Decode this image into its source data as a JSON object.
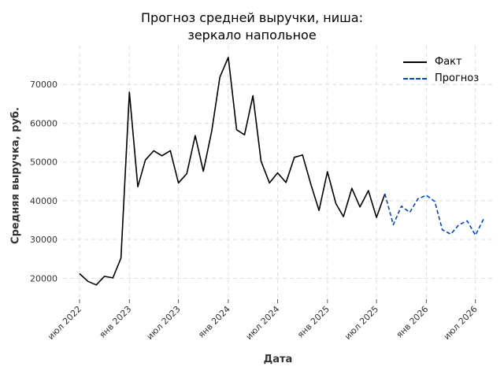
{
  "chart_data": {
    "type": "line",
    "title_lines": [
      "Прогноз средней выручки, ниша:",
      "зеркало напольное"
    ],
    "xlabel": "Дата",
    "ylabel": "Средняя выручка, руб.",
    "xlim": [
      "2022-05-01",
      "2026-09-01"
    ],
    "ylim": [
      15000,
      80000
    ],
    "x_ticks": [
      {
        "date": "2022-07-01",
        "label": "июл 2022"
      },
      {
        "date": "2023-01-01",
        "label": "янв 2023"
      },
      {
        "date": "2023-07-01",
        "label": "июл 2023"
      },
      {
        "date": "2024-01-01",
        "label": "янв 2024"
      },
      {
        "date": "2024-07-01",
        "label": "июл 2024"
      },
      {
        "date": "2025-01-01",
        "label": "янв 2025"
      },
      {
        "date": "2025-07-01",
        "label": "июл 2025"
      },
      {
        "date": "2026-01-01",
        "label": "янв 2026"
      },
      {
        "date": "2026-07-01",
        "label": "июл 2026"
      }
    ],
    "y_ticks": [
      20000,
      30000,
      40000,
      50000,
      60000,
      70000
    ],
    "grid": true,
    "legend_position": "top-right",
    "series": [
      {
        "name": "Факт",
        "color": "#000000",
        "style": "solid",
        "points": [
          [
            "2022-07-01",
            21200
          ],
          [
            "2022-08-01",
            19200
          ],
          [
            "2022-09-01",
            18300
          ],
          [
            "2022-10-01",
            20500
          ],
          [
            "2022-11-01",
            20100
          ],
          [
            "2022-12-01",
            25200
          ],
          [
            "2023-01-01",
            68000
          ],
          [
            "2023-02-01",
            43600
          ],
          [
            "2023-03-01",
            50500
          ],
          [
            "2023-04-01",
            52900
          ],
          [
            "2023-05-01",
            51600
          ],
          [
            "2023-06-01",
            52900
          ],
          [
            "2023-07-01",
            44600
          ],
          [
            "2023-08-01",
            47000
          ],
          [
            "2023-09-01",
            56800
          ],
          [
            "2023-10-01",
            47600
          ],
          [
            "2023-11-01",
            58000
          ],
          [
            "2023-12-01",
            71900
          ],
          [
            "2024-01-01",
            77000
          ],
          [
            "2024-02-01",
            58300
          ],
          [
            "2024-03-01",
            57000
          ],
          [
            "2024-04-01",
            67100
          ],
          [
            "2024-05-01",
            50200
          ],
          [
            "2024-06-01",
            44600
          ],
          [
            "2024-07-01",
            47200
          ],
          [
            "2024-08-01",
            44700
          ],
          [
            "2024-09-01",
            51200
          ],
          [
            "2024-10-01",
            51800
          ],
          [
            "2024-11-01",
            44200
          ],
          [
            "2024-12-01",
            37500
          ],
          [
            "2025-01-01",
            47500
          ],
          [
            "2025-02-01",
            39300
          ],
          [
            "2025-03-01",
            35900
          ],
          [
            "2025-04-01",
            43200
          ],
          [
            "2025-05-01",
            38400
          ],
          [
            "2025-06-01",
            42600
          ],
          [
            "2025-07-01",
            35700
          ],
          [
            "2025-08-01",
            41800
          ]
        ]
      },
      {
        "name": "Прогноз",
        "color": "#0044cc",
        "style": "dashed",
        "points": [
          [
            "2025-08-01",
            41800
          ],
          [
            "2025-09-01",
            33800
          ],
          [
            "2025-10-01",
            38600
          ],
          [
            "2025-11-01",
            37000
          ],
          [
            "2025-12-01",
            40500
          ],
          [
            "2026-01-01",
            41400
          ],
          [
            "2026-02-01",
            39800
          ],
          [
            "2026-03-01",
            32500
          ],
          [
            "2026-04-01",
            31400
          ],
          [
            "2026-05-01",
            33800
          ],
          [
            "2026-06-01",
            34800
          ],
          [
            "2026-07-01",
            31100
          ],
          [
            "2026-08-01",
            35400
          ]
        ]
      }
    ]
  }
}
